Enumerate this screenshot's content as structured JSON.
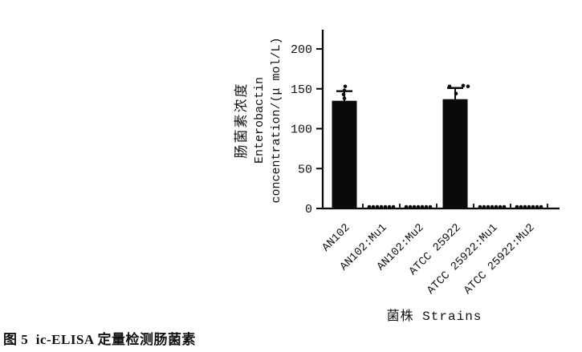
{
  "caption": {
    "text": "图 5  ic-ELISA 定量检测肠菌素"
  },
  "chart_data": {
    "type": "bar",
    "title": "",
    "xlabel": "菌株 Strains",
    "ylabel_lines": [
      "肠菌素浓度",
      "Enterobactin",
      "concentration/(μ mol/L)"
    ],
    "ylabel_combined": "肠菌素浓度 Enterobactin concentration/(μ mol/L)",
    "ylim": [
      0,
      224
    ],
    "yticks": [
      0,
      50,
      100,
      150,
      200
    ],
    "grid": false,
    "legend": "none",
    "bar_color": "#0a0a0a",
    "categories": [
      "AN102",
      "AN102:Mu1",
      "AN102:Mu2",
      "ATCC 25922",
      "ATCC 25922:Mu1",
      "ATCC 25922:Mu2"
    ],
    "values": [
      135,
      1,
      1,
      137,
      1,
      1
    ],
    "error_up": [
      12,
      0,
      0,
      14,
      0,
      0
    ],
    "points": [
      [
        {
          "dx": 1,
          "v": 152
        },
        {
          "dx": 0,
          "v": 147
        },
        {
          "dx": -1,
          "v": 142
        },
        {
          "dx": 0,
          "v": 137
        }
      ],
      [
        {
          "dx": -15,
          "v": 1
        },
        {
          "dx": -10,
          "v": 1
        },
        {
          "dx": -5,
          "v": 1
        },
        {
          "dx": 0,
          "v": 1
        },
        {
          "dx": 5,
          "v": 1
        },
        {
          "dx": 10,
          "v": 1
        },
        {
          "dx": 15,
          "v": 1
        }
      ],
      [
        {
          "dx": -15,
          "v": 1
        },
        {
          "dx": -10,
          "v": 1
        },
        {
          "dx": -5,
          "v": 1
        },
        {
          "dx": 0,
          "v": 1
        },
        {
          "dx": 5,
          "v": 1
        },
        {
          "dx": 10,
          "v": 1
        },
        {
          "dx": 15,
          "v": 1
        }
      ],
      [
        {
          "dx": -7,
          "v": 152
        },
        {
          "dx": 10,
          "v": 153
        },
        {
          "dx": 16,
          "v": 152
        },
        {
          "dx": 1,
          "v": 143
        }
      ],
      [
        {
          "dx": -15,
          "v": 1
        },
        {
          "dx": -10,
          "v": 1
        },
        {
          "dx": -5,
          "v": 1
        },
        {
          "dx": 0,
          "v": 1
        },
        {
          "dx": 5,
          "v": 1
        },
        {
          "dx": 10,
          "v": 1
        },
        {
          "dx": 15,
          "v": 1
        }
      ],
      [
        {
          "dx": -15,
          "v": 1
        },
        {
          "dx": -10,
          "v": 1
        },
        {
          "dx": -5,
          "v": 1
        },
        {
          "dx": 0,
          "v": 1
        },
        {
          "dx": 5,
          "v": 1
        },
        {
          "dx": 10,
          "v": 1
        },
        {
          "dx": 15,
          "v": 1
        }
      ]
    ]
  }
}
